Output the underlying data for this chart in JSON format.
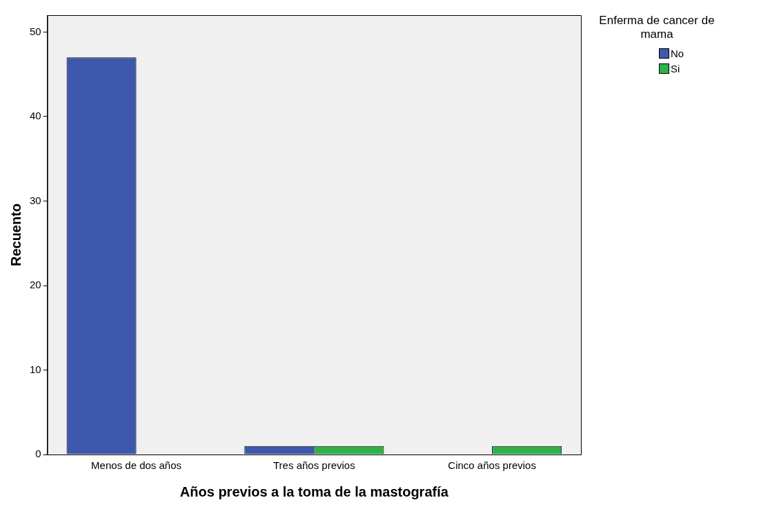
{
  "chart_data": {
    "type": "bar",
    "xlabel": "Años previos a la toma de la mastografía",
    "ylabel": "Recuento",
    "legend_title": "Enferma de cancer de mama",
    "legend": "top right",
    "grid": false,
    "categories": [
      "Menos de dos años",
      "Tres años previos",
      "Cinco años previos"
    ],
    "series": [
      {
        "name": "No",
        "color": "#3e58ab",
        "values": [
          47,
          1,
          null
        ]
      },
      {
        "name": "Si",
        "color": "#2eb14a",
        "values": [
          null,
          1,
          1
        ]
      }
    ],
    "ylim": [
      0,
      52
    ],
    "yticks": [
      0,
      10,
      20,
      30,
      40,
      50
    ]
  }
}
